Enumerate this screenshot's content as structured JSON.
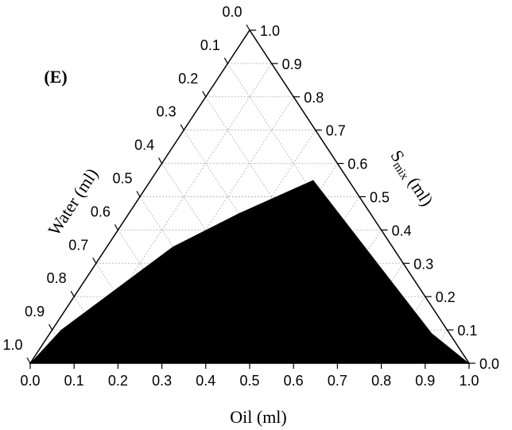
{
  "chart_data": {
    "type": "ternary",
    "panel_label": "(E)",
    "bottom_axis_label": "Oil (ml)",
    "left_axis_label": "Water (ml)",
    "right_axis_label": {
      "symbol": "S",
      "subscript": "mix",
      "unit": "(ml)"
    },
    "ticks": [
      {
        "value": 0,
        "label": "0.0"
      },
      0.1,
      0.2,
      0.3,
      0.4,
      0.5,
      0.6,
      0.7,
      0.8,
      0.9,
      {
        "value": 1,
        "label": "1.0"
      }
    ],
    "grid": true,
    "region": {
      "color": "#000000",
      "oil": [
        0,
        0.02,
        0.15,
        0.25,
        0.37,
        0.87,
        1
      ],
      "smix": [
        0,
        0.1,
        0.35,
        0.45,
        0.55,
        0.09,
        0
      ],
      "water": [
        1,
        0.88,
        0.5,
        0.3,
        0.08,
        0.04,
        0
      ]
    }
  }
}
